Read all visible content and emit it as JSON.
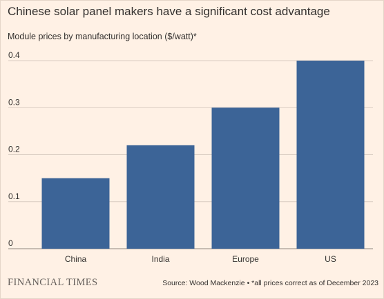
{
  "title": "Chinese solar panel makers have a significant cost advantage",
  "subtitle": "Module prices by manufacturing location ($/watt)*",
  "footer": {
    "brand": "FINANCIAL TIMES",
    "source": "Source: Wood Mackenzie • *all prices correct as of December 2023"
  },
  "chart_data": {
    "type": "bar",
    "categories": [
      "China",
      "India",
      "Europe",
      "US"
    ],
    "values": [
      0.15,
      0.22,
      0.3,
      0.4
    ],
    "ylim": [
      0,
      0.4
    ],
    "yticks": [
      0,
      0.1,
      0.2,
      0.3,
      0.4
    ],
    "ytick_labels": [
      "0",
      "0.1",
      "0.2",
      "0.3",
      "0.4"
    ],
    "xlabel": "",
    "ylabel": "",
    "grid": true,
    "bar_color": "#3c6497",
    "grid_color": "#d9ccc1"
  }
}
